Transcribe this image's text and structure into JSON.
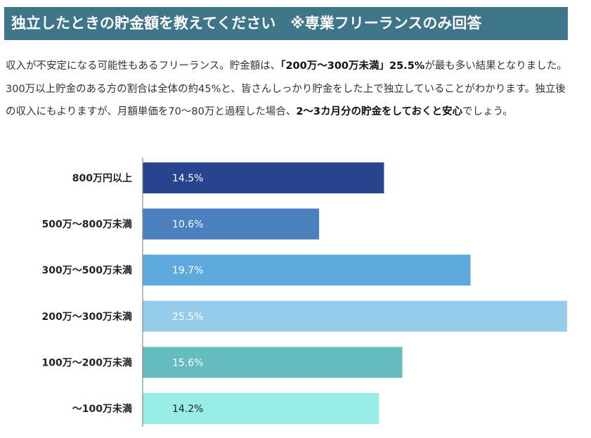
{
  "header": {
    "title": "独立したときの貯金額を教えてください　※専業フリーランスのみ回答"
  },
  "paragraph": {
    "p1": "収入が不安定になる可能性もあるフリーランス。貯金額は、",
    "b1": "「200万〜300万未満」25.5%",
    "p2": "が最も多い結果となりました。300万以上貯金のある方の割合は全体の約45%と、皆さんしっかり貯金をした上で独立していることがわかります。独立後の収入にもよりますが、月額単価を70〜80万と過程した場合、",
    "b2": "2〜3カ月分の貯金をしておくと安心",
    "p3": "でしょう。"
  },
  "chart_data": {
    "type": "bar",
    "orientation": "horizontal",
    "title": "",
    "xlabel": "",
    "ylabel": "",
    "xlim": [
      0,
      25.5
    ],
    "categories": [
      "800万円以上",
      "500万〜800万未満",
      "300万〜500万未満",
      "200万〜300万未満",
      "100万〜200万未満",
      "〜100万未満"
    ],
    "values": [
      14.5,
      10.6,
      19.7,
      25.5,
      15.6,
      14.2
    ],
    "labels": [
      "14.5%",
      "10.6%",
      "19.7%",
      "25.5%",
      "15.6%",
      "14.2%"
    ],
    "colors": [
      "#28448f",
      "#4d80c0",
      "#5faadc",
      "#97cbea",
      "#65bbbd",
      "#98eee5"
    ],
    "label_colors": [
      "#ffffff",
      "#ffffff",
      "#ffffff",
      "#ffffff",
      "#ffffff",
      "#222222"
    ]
  }
}
